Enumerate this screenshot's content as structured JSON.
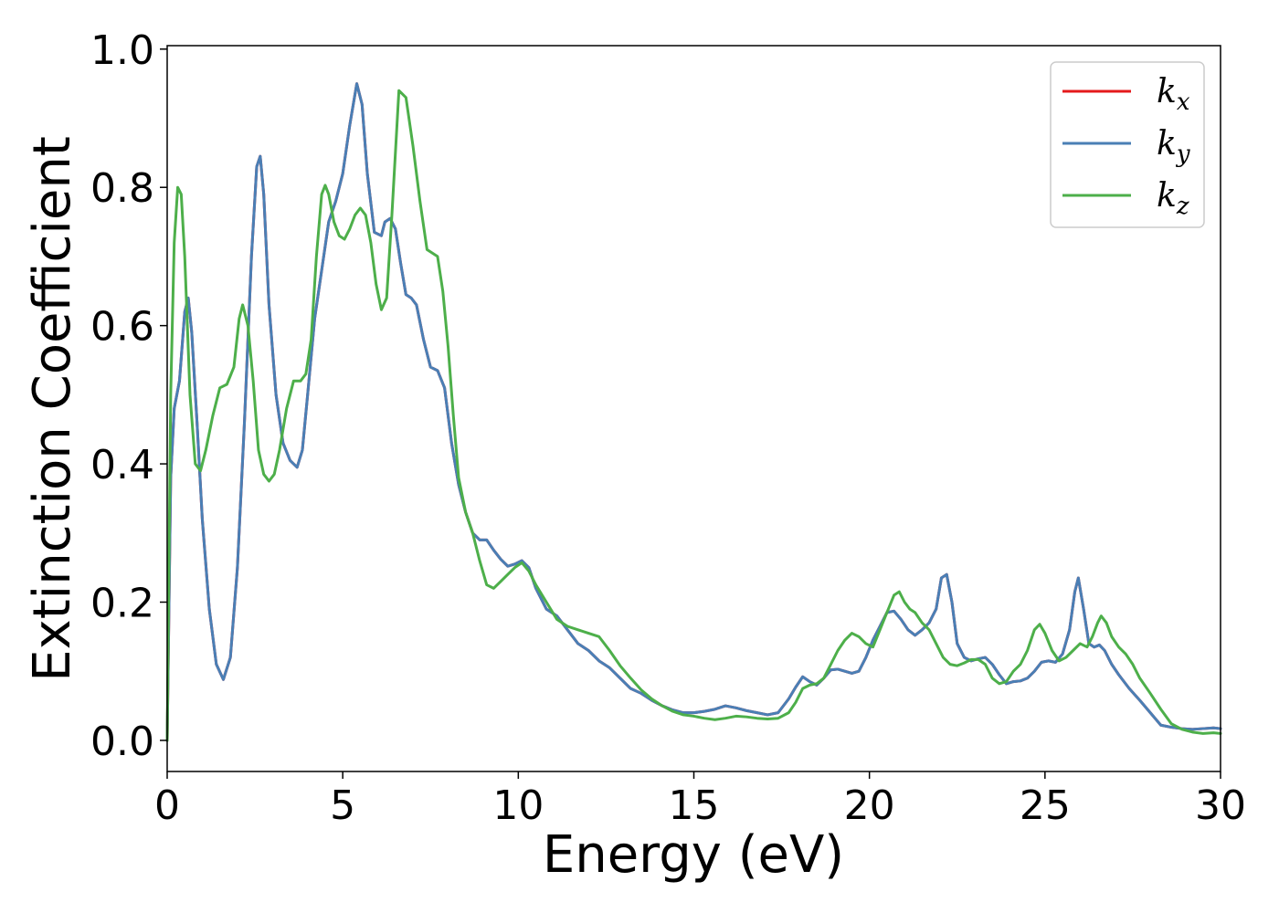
{
  "chart_data": {
    "type": "line",
    "xlabel": "Energy (eV)",
    "ylabel": "Extinction Coefficient",
    "xlim": [
      0,
      30
    ],
    "ylim": [
      -0.045,
      1.005
    ],
    "xticks": [
      0,
      5,
      10,
      15,
      20,
      25,
      30
    ],
    "xtick_labels": [
      "0",
      "5",
      "10",
      "15",
      "20",
      "25",
      "30"
    ],
    "yticks": [
      0.0,
      0.2,
      0.4,
      0.6,
      0.8,
      1.0
    ],
    "ytick_labels": [
      "0.0",
      "0.2",
      "0.4",
      "0.6",
      "0.8",
      "1.0"
    ],
    "grid": false,
    "legend_position": "top-right",
    "series": [
      {
        "name": "k",
        "subscript": "x",
        "color": "#e41a1c",
        "x": [
          0,
          0.1,
          0.2,
          0.35,
          0.5,
          0.6,
          0.7,
          0.85,
          1.0,
          1.2,
          1.4,
          1.6,
          1.8,
          2.0,
          2.2,
          2.4,
          2.55,
          2.65,
          2.75,
          2.9,
          3.1,
          3.3,
          3.5,
          3.7,
          3.85,
          4.0,
          4.2,
          4.4,
          4.6,
          4.8,
          5.0,
          5.2,
          5.4,
          5.55,
          5.7,
          5.9,
          6.1,
          6.2,
          6.35,
          6.5,
          6.65,
          6.8,
          6.95,
          7.1,
          7.3,
          7.5,
          7.7,
          7.9,
          8.1,
          8.3,
          8.5,
          8.7,
          8.9,
          9.1,
          9.3,
          9.5,
          9.7,
          9.9,
          10.1,
          10.3,
          10.5,
          10.8,
          11.1,
          11.4,
          11.7,
          12.0,
          12.3,
          12.6,
          12.9,
          13.2,
          13.5,
          13.8,
          14.1,
          14.4,
          14.7,
          15.0,
          15.3,
          15.6,
          15.9,
          16.2,
          16.5,
          16.8,
          17.1,
          17.4,
          17.7,
          17.9,
          18.1,
          18.3,
          18.5,
          18.7,
          18.9,
          19.1,
          19.3,
          19.5,
          19.7,
          19.9,
          20.1,
          20.3,
          20.5,
          20.7,
          20.9,
          21.1,
          21.3,
          21.5,
          21.7,
          21.9,
          22.05,
          22.2,
          22.35,
          22.5,
          22.7,
          22.9,
          23.1,
          23.3,
          23.5,
          23.7,
          23.9,
          24.1,
          24.3,
          24.5,
          24.7,
          24.9,
          25.1,
          25.3,
          25.5,
          25.7,
          25.85,
          25.95,
          26.1,
          26.25,
          26.4,
          26.55,
          26.7,
          26.9,
          27.1,
          27.4,
          27.7,
          28.0,
          28.3,
          28.6,
          28.9,
          29.2,
          29.5,
          29.8,
          30.0
        ],
        "values": [
          0.0,
          0.38,
          0.48,
          0.52,
          0.62,
          0.64,
          0.59,
          0.46,
          0.32,
          0.19,
          0.11,
          0.088,
          0.12,
          0.25,
          0.46,
          0.7,
          0.83,
          0.845,
          0.79,
          0.63,
          0.5,
          0.43,
          0.405,
          0.395,
          0.42,
          0.5,
          0.61,
          0.68,
          0.75,
          0.78,
          0.82,
          0.89,
          0.95,
          0.92,
          0.82,
          0.735,
          0.73,
          0.75,
          0.755,
          0.74,
          0.69,
          0.645,
          0.64,
          0.63,
          0.58,
          0.54,
          0.535,
          0.51,
          0.43,
          0.37,
          0.33,
          0.3,
          0.29,
          0.29,
          0.275,
          0.262,
          0.252,
          0.255,
          0.26,
          0.25,
          0.22,
          0.19,
          0.18,
          0.16,
          0.14,
          0.13,
          0.115,
          0.105,
          0.09,
          0.075,
          0.068,
          0.058,
          0.05,
          0.044,
          0.04,
          0.04,
          0.042,
          0.045,
          0.05,
          0.047,
          0.043,
          0.04,
          0.037,
          0.04,
          0.06,
          0.077,
          0.092,
          0.085,
          0.08,
          0.09,
          0.102,
          0.103,
          0.1,
          0.097,
          0.1,
          0.12,
          0.145,
          0.165,
          0.185,
          0.187,
          0.175,
          0.16,
          0.152,
          0.16,
          0.17,
          0.19,
          0.235,
          0.24,
          0.2,
          0.14,
          0.12,
          0.115,
          0.118,
          0.12,
          0.11,
          0.095,
          0.082,
          0.085,
          0.086,
          0.09,
          0.1,
          0.113,
          0.115,
          0.113,
          0.125,
          0.16,
          0.215,
          0.235,
          0.19,
          0.14,
          0.135,
          0.138,
          0.13,
          0.11,
          0.095,
          0.075,
          0.058,
          0.04,
          0.022,
          0.019,
          0.017,
          0.016,
          0.017,
          0.018,
          0.017
        ]
      },
      {
        "name": "k",
        "subscript": "y",
        "color": "#4a7fb5",
        "x": [
          0,
          0.1,
          0.2,
          0.35,
          0.5,
          0.6,
          0.7,
          0.85,
          1.0,
          1.2,
          1.4,
          1.6,
          1.8,
          2.0,
          2.2,
          2.4,
          2.55,
          2.65,
          2.75,
          2.9,
          3.1,
          3.3,
          3.5,
          3.7,
          3.85,
          4.0,
          4.2,
          4.4,
          4.6,
          4.8,
          5.0,
          5.2,
          5.4,
          5.55,
          5.7,
          5.9,
          6.1,
          6.2,
          6.35,
          6.5,
          6.65,
          6.8,
          6.95,
          7.1,
          7.3,
          7.5,
          7.7,
          7.9,
          8.1,
          8.3,
          8.5,
          8.7,
          8.9,
          9.1,
          9.3,
          9.5,
          9.7,
          9.9,
          10.1,
          10.3,
          10.5,
          10.8,
          11.1,
          11.4,
          11.7,
          12.0,
          12.3,
          12.6,
          12.9,
          13.2,
          13.5,
          13.8,
          14.1,
          14.4,
          14.7,
          15.0,
          15.3,
          15.6,
          15.9,
          16.2,
          16.5,
          16.8,
          17.1,
          17.4,
          17.7,
          17.9,
          18.1,
          18.3,
          18.5,
          18.7,
          18.9,
          19.1,
          19.3,
          19.5,
          19.7,
          19.9,
          20.1,
          20.3,
          20.5,
          20.7,
          20.9,
          21.1,
          21.3,
          21.5,
          21.7,
          21.9,
          22.05,
          22.2,
          22.35,
          22.5,
          22.7,
          22.9,
          23.1,
          23.3,
          23.5,
          23.7,
          23.9,
          24.1,
          24.3,
          24.5,
          24.7,
          24.9,
          25.1,
          25.3,
          25.5,
          25.7,
          25.85,
          25.95,
          26.1,
          26.25,
          26.4,
          26.55,
          26.7,
          26.9,
          27.1,
          27.4,
          27.7,
          28.0,
          28.3,
          28.6,
          28.9,
          29.2,
          29.5,
          29.8,
          30.0
        ],
        "values": [
          0.0,
          0.38,
          0.48,
          0.52,
          0.62,
          0.64,
          0.59,
          0.46,
          0.32,
          0.19,
          0.11,
          0.088,
          0.12,
          0.25,
          0.46,
          0.7,
          0.83,
          0.845,
          0.79,
          0.63,
          0.5,
          0.43,
          0.405,
          0.395,
          0.42,
          0.5,
          0.61,
          0.68,
          0.75,
          0.78,
          0.82,
          0.89,
          0.95,
          0.92,
          0.82,
          0.735,
          0.73,
          0.75,
          0.755,
          0.74,
          0.69,
          0.645,
          0.64,
          0.63,
          0.58,
          0.54,
          0.535,
          0.51,
          0.43,
          0.37,
          0.33,
          0.3,
          0.29,
          0.29,
          0.275,
          0.262,
          0.252,
          0.255,
          0.26,
          0.25,
          0.22,
          0.19,
          0.18,
          0.16,
          0.14,
          0.13,
          0.115,
          0.105,
          0.09,
          0.075,
          0.068,
          0.058,
          0.05,
          0.044,
          0.04,
          0.04,
          0.042,
          0.045,
          0.05,
          0.047,
          0.043,
          0.04,
          0.037,
          0.04,
          0.06,
          0.077,
          0.092,
          0.085,
          0.08,
          0.09,
          0.102,
          0.103,
          0.1,
          0.097,
          0.1,
          0.12,
          0.145,
          0.165,
          0.185,
          0.187,
          0.175,
          0.16,
          0.152,
          0.16,
          0.17,
          0.19,
          0.235,
          0.24,
          0.2,
          0.14,
          0.12,
          0.115,
          0.118,
          0.12,
          0.11,
          0.095,
          0.082,
          0.085,
          0.086,
          0.09,
          0.1,
          0.113,
          0.115,
          0.113,
          0.125,
          0.16,
          0.215,
          0.235,
          0.19,
          0.14,
          0.135,
          0.138,
          0.13,
          0.11,
          0.095,
          0.075,
          0.058,
          0.04,
          0.022,
          0.019,
          0.017,
          0.016,
          0.017,
          0.018,
          0.017
        ]
      },
      {
        "name": "k",
        "subscript": "z",
        "color": "#4daf4a",
        "x": [
          0,
          0.1,
          0.2,
          0.3,
          0.4,
          0.5,
          0.65,
          0.8,
          0.95,
          1.1,
          1.3,
          1.5,
          1.7,
          1.9,
          2.05,
          2.15,
          2.3,
          2.45,
          2.6,
          2.75,
          2.9,
          3.05,
          3.2,
          3.4,
          3.6,
          3.8,
          3.95,
          4.1,
          4.25,
          4.4,
          4.5,
          4.6,
          4.75,
          4.9,
          5.05,
          5.2,
          5.35,
          5.5,
          5.65,
          5.8,
          5.95,
          6.1,
          6.25,
          6.4,
          6.6,
          6.8,
          7.0,
          7.2,
          7.4,
          7.55,
          7.7,
          7.85,
          8.0,
          8.15,
          8.3,
          8.5,
          8.7,
          8.9,
          9.1,
          9.3,
          9.5,
          9.7,
          9.9,
          10.1,
          10.3,
          10.5,
          10.8,
          11.1,
          11.4,
          11.7,
          12.0,
          12.3,
          12.6,
          12.9,
          13.2,
          13.5,
          13.8,
          14.1,
          14.4,
          14.7,
          15.0,
          15.3,
          15.6,
          15.9,
          16.2,
          16.5,
          16.8,
          17.1,
          17.4,
          17.7,
          17.9,
          18.1,
          18.3,
          18.5,
          18.7,
          18.9,
          19.1,
          19.3,
          19.5,
          19.7,
          19.9,
          20.1,
          20.3,
          20.5,
          20.7,
          20.85,
          21.0,
          21.15,
          21.3,
          21.5,
          21.7,
          21.9,
          22.1,
          22.3,
          22.5,
          22.7,
          22.9,
          23.1,
          23.3,
          23.5,
          23.7,
          23.9,
          24.1,
          24.3,
          24.5,
          24.7,
          24.85,
          25.0,
          25.2,
          25.4,
          25.6,
          25.8,
          26.0,
          26.2,
          26.35,
          26.5,
          26.6,
          26.75,
          26.9,
          27.1,
          27.3,
          27.5,
          27.7,
          28.0,
          28.3,
          28.6,
          28.9,
          29.2,
          29.5,
          29.8,
          30.0
        ],
        "values": [
          0.0,
          0.5,
          0.72,
          0.8,
          0.79,
          0.7,
          0.5,
          0.4,
          0.39,
          0.42,
          0.47,
          0.51,
          0.515,
          0.54,
          0.61,
          0.63,
          0.6,
          0.52,
          0.42,
          0.385,
          0.375,
          0.385,
          0.42,
          0.48,
          0.52,
          0.52,
          0.53,
          0.58,
          0.7,
          0.79,
          0.803,
          0.79,
          0.75,
          0.73,
          0.725,
          0.74,
          0.76,
          0.77,
          0.76,
          0.72,
          0.66,
          0.623,
          0.64,
          0.76,
          0.94,
          0.93,
          0.86,
          0.78,
          0.71,
          0.705,
          0.7,
          0.65,
          0.57,
          0.47,
          0.38,
          0.33,
          0.3,
          0.26,
          0.225,
          0.22,
          0.23,
          0.24,
          0.25,
          0.257,
          0.245,
          0.225,
          0.2,
          0.175,
          0.165,
          0.16,
          0.155,
          0.15,
          0.13,
          0.108,
          0.09,
          0.073,
          0.06,
          0.05,
          0.042,
          0.037,
          0.035,
          0.032,
          0.03,
          0.032,
          0.035,
          0.034,
          0.032,
          0.031,
          0.032,
          0.04,
          0.055,
          0.075,
          0.08,
          0.082,
          0.09,
          0.11,
          0.13,
          0.145,
          0.155,
          0.15,
          0.14,
          0.135,
          0.16,
          0.185,
          0.21,
          0.215,
          0.2,
          0.19,
          0.185,
          0.17,
          0.16,
          0.14,
          0.12,
          0.11,
          0.108,
          0.112,
          0.117,
          0.117,
          0.11,
          0.09,
          0.082,
          0.085,
          0.1,
          0.11,
          0.13,
          0.16,
          0.168,
          0.155,
          0.13,
          0.115,
          0.12,
          0.13,
          0.14,
          0.135,
          0.15,
          0.17,
          0.18,
          0.17,
          0.15,
          0.135,
          0.125,
          0.11,
          0.09,
          0.068,
          0.045,
          0.024,
          0.016,
          0.012,
          0.01,
          0.011,
          0.01
        ]
      }
    ]
  }
}
